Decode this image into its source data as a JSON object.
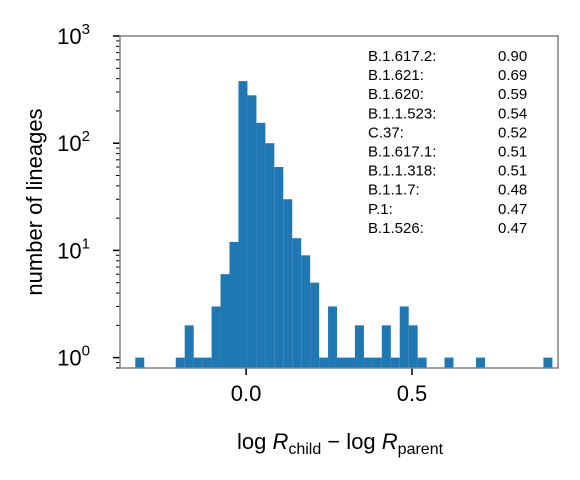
{
  "chart_data": {
    "type": "bar",
    "subtype": "histogram",
    "xlabel": "log R_child − log R_parent",
    "xlabel_parts": {
      "lead": "log ",
      "r1": "R",
      "sub1": "child",
      "mid": " − log ",
      "r2": "R",
      "sub2": "parent"
    },
    "ylabel": "number of lineages",
    "yscale": "log",
    "xlim": [
      -0.38,
      0.94
    ],
    "ylim": [
      0.8,
      1000
    ],
    "x_ticks": [
      {
        "value": 0.0,
        "label": "0.0"
      },
      {
        "value": 0.5,
        "label": "0.5"
      }
    ],
    "y_ticks": [
      {
        "value": 1,
        "base": "10",
        "exp": "0"
      },
      {
        "value": 10,
        "base": "10",
        "exp": "1"
      },
      {
        "value": 100,
        "base": "10",
        "exp": "2"
      },
      {
        "value": 1000,
        "base": "10",
        "exp": "3"
      }
    ],
    "bin_width": 0.0271,
    "bins": [
      {
        "x0": -0.334,
        "count": 1
      },
      {
        "x0": -0.212,
        "count": 1
      },
      {
        "x0": -0.185,
        "count": 2
      },
      {
        "x0": -0.158,
        "count": 1
      },
      {
        "x0": -0.131,
        "count": 1
      },
      {
        "x0": -0.104,
        "count": 3
      },
      {
        "x0": -0.077,
        "count": 6
      },
      {
        "x0": -0.05,
        "count": 12
      },
      {
        "x0": -0.023,
        "count": 380
      },
      {
        "x0": 0.004,
        "count": 280
      },
      {
        "x0": 0.031,
        "count": 155
      },
      {
        "x0": 0.058,
        "count": 100
      },
      {
        "x0": 0.085,
        "count": 60
      },
      {
        "x0": 0.112,
        "count": 30
      },
      {
        "x0": 0.139,
        "count": 13
      },
      {
        "x0": 0.166,
        "count": 9
      },
      {
        "x0": 0.193,
        "count": 5
      },
      {
        "x0": 0.22,
        "count": 1
      },
      {
        "x0": 0.247,
        "count": 3
      },
      {
        "x0": 0.274,
        "count": 1
      },
      {
        "x0": 0.301,
        "count": 1
      },
      {
        "x0": 0.328,
        "count": 2
      },
      {
        "x0": 0.355,
        "count": 1
      },
      {
        "x0": 0.382,
        "count": 1
      },
      {
        "x0": 0.409,
        "count": 2
      },
      {
        "x0": 0.436,
        "count": 1
      },
      {
        "x0": 0.463,
        "count": 3
      },
      {
        "x0": 0.49,
        "count": 2
      },
      {
        "x0": 0.517,
        "count": 1
      },
      {
        "x0": 0.598,
        "count": 1
      },
      {
        "x0": 0.693,
        "count": 1
      },
      {
        "x0": 0.896,
        "count": 1
      }
    ],
    "bar_color": "#1f77b4",
    "annotation": [
      {
        "lineage": "B.1.617.2:",
        "value": "0.90"
      },
      {
        "lineage": "B.1.621:",
        "value": "0.69"
      },
      {
        "lineage": "B.1.620:",
        "value": "0.59"
      },
      {
        "lineage": "B.1.1.523:",
        "value": "0.54"
      },
      {
        "lineage": "C.37:",
        "value": "0.52"
      },
      {
        "lineage": "B.1.617.1:",
        "value": "0.51"
      },
      {
        "lineage": "B.1.1.318:",
        "value": "0.51"
      },
      {
        "lineage": "B.1.1.7:",
        "value": "0.48"
      },
      {
        "lineage": "P.1:",
        "value": "0.47"
      },
      {
        "lineage": "B.1.526:",
        "value": "0.47"
      }
    ],
    "annotation_placement": "top-right",
    "grid": false
  }
}
